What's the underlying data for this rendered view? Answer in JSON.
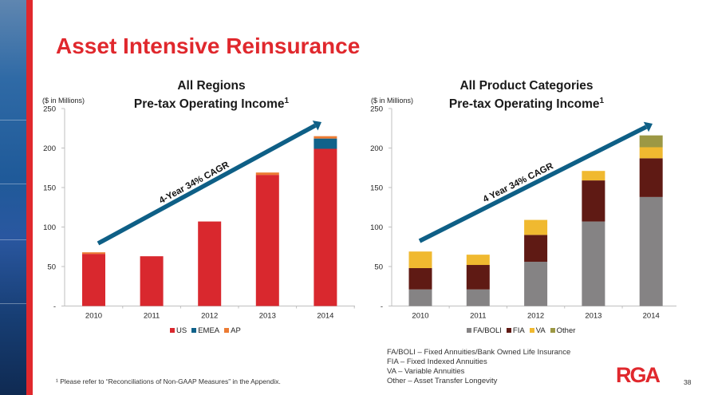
{
  "slide": {
    "title": "Asset Intensive Reinsurance",
    "page_number": "38",
    "logo_text": "RGA",
    "footnote": "¹ Please refer to “Reconciliations of Non-GAAP Measures” in the Appendix.",
    "notes": [
      "FA/BOLI – Fixed Annuities/Bank Owned Life Insurance",
      "FIA – Fixed Indexed Annuities",
      "VA – Variable Annuities",
      "Other – Asset Transfer Longevity"
    ],
    "colors": {
      "brand_red": "#e0282d",
      "arrow_blue": "#0e5f86"
    }
  },
  "chart_data": [
    {
      "type": "bar",
      "stacked": true,
      "title_line1": "All Regions",
      "title_line2": "Pre-tax Operating Income",
      "title_superscript": "1",
      "ylabel": "($ in Millions)",
      "xlabel": "",
      "ylim": [
        0,
        250
      ],
      "yticks": [
        0,
        50,
        100,
        150,
        200,
        250
      ],
      "ytick_labels": [
        "-",
        "50",
        "100",
        "150",
        "200",
        "250"
      ],
      "categories": [
        "2010",
        "2011",
        "2012",
        "2013",
        "2014"
      ],
      "series": [
        {
          "name": "US",
          "color": "#d9282e",
          "values": [
            66,
            63,
            107,
            166,
            199
          ]
        },
        {
          "name": "EMEA",
          "color": "#10628a",
          "values": [
            0,
            0,
            0,
            0,
            13
          ]
        },
        {
          "name": "AP",
          "color": "#ec7b33",
          "values": [
            2,
            0,
            0,
            3,
            3
          ]
        }
      ],
      "legend": [
        "US",
        "EMEA",
        "AP"
      ],
      "legend_position": "bottom",
      "grid": false,
      "annotation": "4-Year 34% CAGR"
    },
    {
      "type": "bar",
      "stacked": true,
      "title_line1": "All Product Categories",
      "title_line2": "Pre-tax Operating Income",
      "title_superscript": "1",
      "ylabel": "($ in Millions)",
      "xlabel": "",
      "ylim": [
        0,
        250
      ],
      "yticks": [
        0,
        50,
        100,
        150,
        200,
        250
      ],
      "ytick_labels": [
        "-",
        "50",
        "100",
        "150",
        "200",
        "250"
      ],
      "categories": [
        "2010",
        "2011",
        "2012",
        "2013",
        "2014"
      ],
      "series": [
        {
          "name": "FA/BOLI",
          "color": "#858384",
          "values": [
            21,
            21,
            56,
            107,
            138
          ]
        },
        {
          "name": "FIA",
          "color": "#5f1a14",
          "values": [
            27,
            31,
            34,
            52,
            49
          ]
        },
        {
          "name": "VA",
          "color": "#f0b930",
          "values": [
            21,
            13,
            19,
            12,
            14
          ]
        },
        {
          "name": "Other",
          "color": "#9c9844",
          "values": [
            0,
            0,
            0,
            0,
            15
          ]
        }
      ],
      "legend": [
        "FA/BOLI",
        "FIA",
        "VA",
        "Other"
      ],
      "legend_position": "bottom",
      "grid": false,
      "annotation": "4 Year 34% CAGR"
    }
  ]
}
